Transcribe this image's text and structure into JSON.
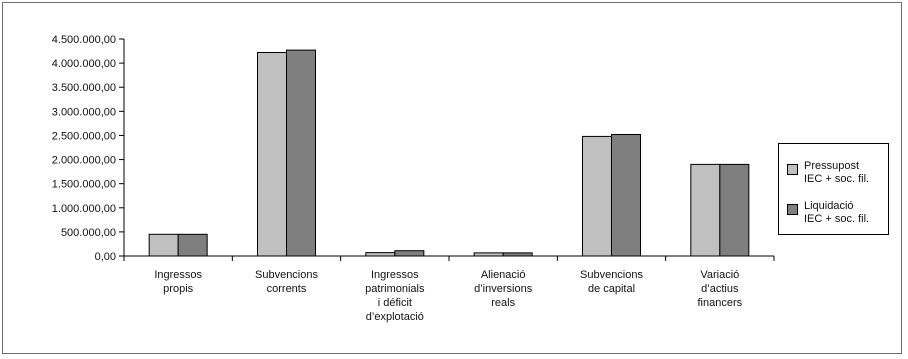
{
  "chart_data": {
    "type": "bar",
    "categories": [
      "Ingressos\npropis",
      "Subvencions\ncorrents",
      "Ingressos\npatrimonials\ni déficit\nd’explotació",
      "Alienació\nd’inversions\nreals",
      "Subvencions\nde capital",
      "Variació\nd’actius\nfinancers"
    ],
    "series": [
      {
        "name": "Pressupost\nIEC + soc. fil.",
        "color": "#c0c0c0",
        "values": [
          450000,
          4220000,
          70000,
          65000,
          2480000,
          1900000
        ]
      },
      {
        "name": "Liquidació\nIEC + soc. fil.",
        "color": "#7f7f7f",
        "values": [
          450000,
          4270000,
          110000,
          65000,
          2520000,
          1900000
        ]
      }
    ],
    "ylim": [
      0,
      4500000
    ],
    "yticks": [
      0,
      500000,
      1000000,
      1500000,
      2000000,
      2500000,
      3000000,
      3500000,
      4000000,
      4500000
    ],
    "ytick_labels": [
      "0,00",
      "500.000,00",
      "1.000.000,00",
      "1.500.000,00",
      "2.000.000,00",
      "2.500.000,00",
      "3.000.000,00",
      "3.500.000,00",
      "4.000.000,00",
      "4.500.000,00"
    ],
    "grid": false,
    "legend_position": "right"
  }
}
